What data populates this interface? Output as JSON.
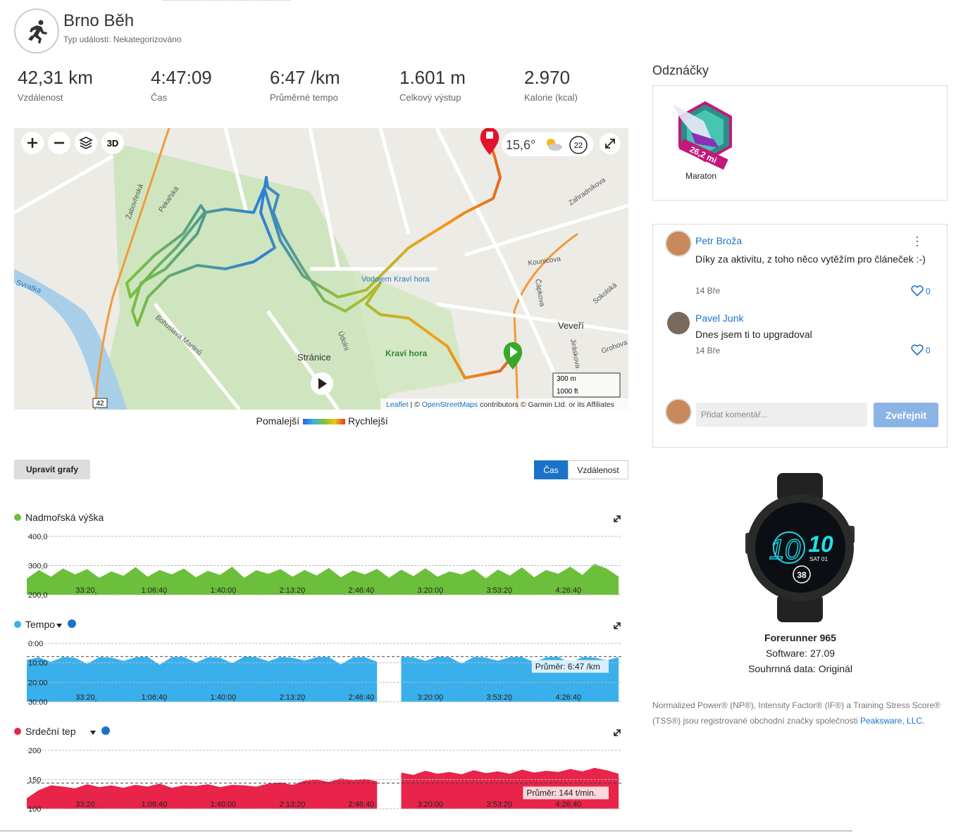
{
  "header": {
    "title": "Brno Běh",
    "subtitle": "Typ události: Nekategorizováno"
  },
  "stats": [
    {
      "value": "42,31 km",
      "label": "Vzdálenost"
    },
    {
      "value": "4:47:09",
      "label": "Čas"
    },
    {
      "value": "6:47 /km",
      "label": "Průměrné tempo"
    },
    {
      "value": "1.601 m",
      "label": "Celkový výstup"
    },
    {
      "value": "2.970",
      "label": "Kalorie (kcal)"
    }
  ],
  "map": {
    "control": "3D",
    "temperature": "15,6°",
    "wind": "22",
    "labels": [
      "Stránice",
      "Veveří",
      "Kraví hora",
      "Svratka",
      "Vodojem Kraví hora",
      "Žabovřeská",
      "Údolní",
      "Grohova",
      "Kounicova",
      "Zahradníkova",
      "Čápkova",
      "Sokolská",
      "Bohuslava Martinů",
      "Pekařská",
      "Jiráskova",
      "42"
    ],
    "scale": [
      "300 m",
      "1000 ft"
    ],
    "attribution": [
      "Leaflet",
      "| ©",
      "OpenStreetMaps",
      "contributors © Garmin Ltd. or its Affiliates"
    ]
  },
  "legend": {
    "slower": "Pomalejší",
    "faster": "Rychlejší"
  },
  "controls": {
    "edit_charts": "Upravit grafy",
    "time": "Čas",
    "distance": "Vzdálenost"
  },
  "charts": [
    {
      "type": "area",
      "title": "Nadmořská výška",
      "color": "#6cbf3b",
      "x": [
        0,
        350,
        700,
        1050,
        1400,
        1750,
        2100,
        2450,
        2800,
        3150,
        3500,
        3850,
        4200,
        4550,
        4900,
        5250,
        5600,
        5950,
        6300,
        6650,
        7000,
        7350,
        7700,
        8050,
        8400,
        8750,
        9100,
        9450,
        9800,
        10150,
        10500,
        10850,
        11200,
        11550,
        11900,
        12250,
        12600,
        12950,
        13300,
        13650,
        14000,
        14350,
        14700,
        15050,
        15400,
        15750,
        16100,
        16450,
        16800,
        17150
      ],
      "values": [
        255,
        285,
        262,
        290,
        270,
        288,
        258,
        280,
        265,
        295,
        262,
        285,
        270,
        290,
        260,
        282,
        268,
        296,
        258,
        284,
        272,
        288,
        262,
        285,
        266,
        292,
        260,
        283,
        270,
        289,
        258,
        286,
        264,
        291,
        262,
        280,
        270,
        288,
        256,
        286,
        266,
        294,
        260,
        285,
        272,
        296,
        268,
        306,
        290,
        262
      ],
      "xlim": [
        0,
        17229
      ],
      "xticks": [
        {
          "value": 2000,
          "label": "33:20"
        },
        {
          "value": 4000,
          "label": "1:06:40"
        },
        {
          "value": 6000,
          "label": "1:40:00"
        },
        {
          "value": 8000,
          "label": "2:13:20"
        },
        {
          "value": 10000,
          "label": "2:46:40"
        },
        {
          "value": 12000,
          "label": "3:20:00"
        },
        {
          "value": 14000,
          "label": "3:53:20"
        },
        {
          "value": 16000,
          "label": "4:26:40"
        }
      ],
      "ylim": [
        200,
        400
      ],
      "yticks": [
        {
          "value": 400,
          "label": "400,0"
        },
        {
          "value": 300,
          "label": "300,0"
        },
        {
          "value": 200,
          "label": "200,0"
        }
      ]
    },
    {
      "type": "area",
      "title": "Tempo",
      "color": "#39b0ec",
      "inverted": true,
      "x": [
        0,
        350,
        700,
        1050,
        1400,
        1750,
        2100,
        2450,
        2800,
        3150,
        3500,
        3850,
        4200,
        4550,
        4900,
        5250,
        5600,
        5950,
        6300,
        6650,
        7000,
        7350,
        7700,
        8050,
        8400,
        8750,
        9100,
        9450,
        9800,
        10150,
        10500,
        10850,
        11200,
        11550,
        11900,
        12250,
        12600,
        12950,
        13300,
        13650,
        14000,
        14350,
        14700,
        15050,
        15400,
        15750,
        16100,
        16450,
        16800,
        17150
      ],
      "values": [
        8.5,
        7.2,
        9.5,
        7.0,
        7.4,
        10.5,
        7.1,
        7.3,
        9.0,
        7.2,
        6.9,
        11.0,
        7.1,
        7.0,
        9.8,
        7.2,
        7.3,
        10.2,
        6.8,
        7.1,
        9.2,
        7.0,
        7.4,
        8.8,
        7.1,
        7.0,
        10.8,
        7.2,
        7.1,
        9.4,
        null,
        7.0,
        7.2,
        9.0,
        6.9,
        7.1,
        10.4,
        7.0,
        7.3,
        8.9,
        7.1,
        7.0,
        9.6,
        7.2,
        6.9,
        10.1,
        7.0,
        7.3,
        8.7,
        7.1
      ],
      "xlim": [
        0,
        17229
      ],
      "xticks": [
        {
          "value": 2000,
          "label": "33:20"
        },
        {
          "value": 4000,
          "label": "1:06:40"
        },
        {
          "value": 6000,
          "label": "1:40:00"
        },
        {
          "value": 8000,
          "label": "2:13:20"
        },
        {
          "value": 10000,
          "label": "2:46:40"
        },
        {
          "value": 12000,
          "label": "3:20:00"
        },
        {
          "value": 14000,
          "label": "3:53:20"
        },
        {
          "value": 16000,
          "label": "4:26:40"
        }
      ],
      "ylim": [
        0,
        30
      ],
      "yticks": [
        {
          "value": 0,
          "label": "0:00"
        },
        {
          "value": 10,
          "label": "10:00"
        },
        {
          "value": 20,
          "label": "20:00"
        },
        {
          "value": 30,
          "label": "30:00"
        }
      ],
      "average": {
        "value": 6.783,
        "label": "Průměr: 6:47 /km"
      }
    },
    {
      "type": "area",
      "title": "Srdeční tep",
      "color": "#e8244a",
      "x": [
        0,
        350,
        700,
        1050,
        1400,
        1750,
        2100,
        2450,
        2800,
        3150,
        3500,
        3850,
        4200,
        4550,
        4900,
        5250,
        5600,
        5950,
        6300,
        6650,
        7000,
        7350,
        7700,
        8050,
        8400,
        8750,
        9100,
        9450,
        9800,
        10150,
        10500,
        10850,
        11200,
        11550,
        11900,
        12250,
        12600,
        12950,
        13300,
        13650,
        14000,
        14350,
        14700,
        15050,
        15400,
        15750,
        16100,
        16450,
        16800,
        17150
      ],
      "values": [
        118,
        132,
        140,
        138,
        135,
        142,
        137,
        140,
        136,
        141,
        138,
        143,
        136,
        140,
        139,
        142,
        137,
        141,
        140,
        138,
        143,
        145,
        141,
        148,
        150,
        146,
        152,
        149,
        151,
        147,
        null,
        162,
        158,
        165,
        160,
        163,
        159,
        166,
        161,
        164,
        160,
        167,
        162,
        165,
        163,
        168,
        164,
        170,
        166,
        160
      ],
      "xlim": [
        0,
        17229
      ],
      "xticks": [
        {
          "value": 2000,
          "label": "33:20"
        },
        {
          "value": 4000,
          "label": "1:06:40"
        },
        {
          "value": 6000,
          "label": "1:40:00"
        },
        {
          "value": 8000,
          "label": "2:13:20"
        },
        {
          "value": 10000,
          "label": "2:46:40"
        },
        {
          "value": 12000,
          "label": "3:20:00"
        },
        {
          "value": 14000,
          "label": "3:53:20"
        },
        {
          "value": 16000,
          "label": "4:26:40"
        }
      ],
      "ylim": [
        100,
        200
      ],
      "yticks": [
        200,
        150,
        100
      ],
      "average": {
        "value": 144,
        "label": "Průměr: 144 t/min."
      }
    }
  ],
  "badges": {
    "title": "Odznáčky",
    "items": [
      {
        "name": "Maraton",
        "ribbon": "26,2 mi"
      }
    ]
  },
  "comments": {
    "items": [
      {
        "author": "Petr Broža",
        "text": "Díky za aktivitu, z toho něco vytěžím pro článeček :-)",
        "date": "14 Bře",
        "likes": 0
      },
      {
        "author": "Pavel Junk",
        "text": "Dnes jsem ti to upgradoval",
        "date": "14 Bře",
        "likes": 0
      }
    ],
    "placeholder": "Přidat komentář...",
    "submit": "Zveřejnit"
  },
  "device": {
    "name": "Forerunner 965",
    "software": "Software: 27.09",
    "summary": "Souhrnná data: Originál",
    "face": [
      "10",
      "10",
      "SAT 01",
      "38"
    ]
  },
  "footer": {
    "text": "Normalized Power® (NP®), Intensity Factor® (IF®) a Training Stress Score® (TSS®) jsou registrované obchodní značky společnosti",
    "link": "Peaksware, LLC."
  }
}
